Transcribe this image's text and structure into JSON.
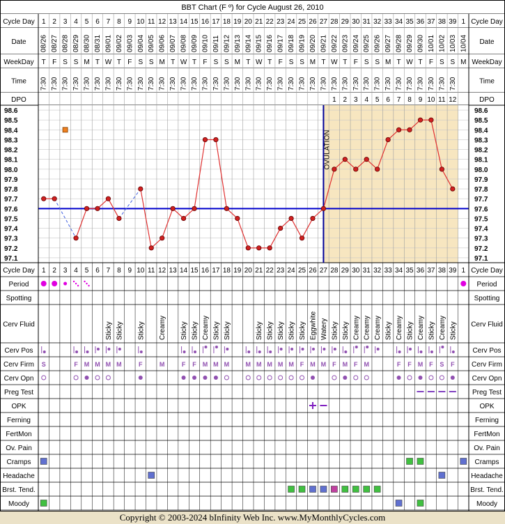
{
  "title": "BBT Chart (F º) for Cycle August 26, 2010",
  "footer": "Copyright © 2003-2024 bInfinity Web Inc.    www.MyMonthlyCycles.com",
  "colors": {
    "line": "#e03030",
    "point_fill": "#d02020",
    "coverline": "#0000cc",
    "ovulation_line": "#000099",
    "luteal_shade": "#f7e6c0",
    "header_bg": "#e8e8e8",
    "period_dot": "#e000e0",
    "fluid_text": "#000000",
    "cervix_mark": "#9050b0",
    "opk_mark": "#8020c0",
    "preg_test_mark": "#8040c0",
    "symptom_blue": "#6070d0",
    "symptom_green": "#40c040",
    "symptom_magenta": "#c040a0",
    "unconfirmed_box": "#f08020"
  },
  "chart_data": {
    "type": "line",
    "title": "BBT Chart (F º) for Cycle August 26, 2010",
    "ylabel": "",
    "ylim": [
      97.1,
      98.6
    ],
    "y_ticks": [
      "98.6",
      "98.5",
      "98.4",
      "98.3",
      "98.2",
      "98.1",
      "98.0",
      "97.9",
      "97.8",
      "97.7",
      "97.6",
      "97.5",
      "97.4",
      "97.3",
      "97.2",
      "97.1"
    ],
    "cycle_days": [
      "1",
      "2",
      "3",
      "4",
      "5",
      "6",
      "7",
      "8",
      "9",
      "10",
      "11",
      "12",
      "13",
      "14",
      "15",
      "16",
      "17",
      "18",
      "19",
      "20",
      "21",
      "22",
      "23",
      "24",
      "25",
      "26",
      "27",
      "28",
      "29",
      "30",
      "31",
      "32",
      "33",
      "34",
      "35",
      "36",
      "37",
      "38",
      "39",
      "1"
    ],
    "dates": [
      "08/26",
      "08/27",
      "08/28",
      "08/29",
      "08/30",
      "08/31",
      "09/01",
      "09/02",
      "09/03",
      "09/04",
      "09/05",
      "09/06",
      "09/07",
      "09/08",
      "09/09",
      "09/10",
      "09/11",
      "09/12",
      "09/13",
      "09/14",
      "09/15",
      "09/16",
      "09/17",
      "09/18",
      "09/19",
      "09/20",
      "09/21",
      "09/22",
      "09/23",
      "09/24",
      "09/25",
      "09/26",
      "09/27",
      "09/28",
      "09/29",
      "09/30",
      "10/01",
      "10/02",
      "10/03",
      "10/04"
    ],
    "weekdays": [
      "T",
      "F",
      "S",
      "S",
      "M",
      "T",
      "W",
      "T",
      "F",
      "S",
      "S",
      "M",
      "T",
      "W",
      "T",
      "F",
      "S",
      "S",
      "M",
      "T",
      "W",
      "T",
      "F",
      "S",
      "S",
      "M",
      "T",
      "W",
      "T",
      "F",
      "S",
      "S",
      "M",
      "T",
      "W",
      "T",
      "F",
      "S",
      "S",
      "M"
    ],
    "times": [
      "7:30",
      "7:30",
      "7:30",
      "7:30",
      "7:30",
      "7:30",
      "7:30",
      "7:30",
      "7:30",
      "7:30",
      "7:30",
      "7:30",
      "7:30",
      "7:30",
      "7:30",
      "7:30",
      "7:30",
      "7:30",
      "7:30",
      "7:30",
      "7:30",
      "7:30",
      "7:30",
      "7:30",
      "7:30",
      "7:30",
      "7:30",
      "7:30",
      "7:30",
      "7:30",
      "7:30",
      "7:30",
      "7:30",
      "7:30",
      "7:30",
      "7:30",
      "7:30",
      "7:30",
      "7:30",
      ""
    ],
    "dpo": [
      "",
      "",
      "",
      "",
      "",
      "",
      "",
      "",
      "",
      "",
      "",
      "",
      "",
      "",
      "",
      "",
      "",
      "",
      "",
      "",
      "",
      "",
      "",
      "",
      "",
      "",
      "",
      "1",
      "2",
      "3",
      "4",
      "5",
      "6",
      "7",
      "8",
      "9",
      "10",
      "11",
      "12",
      ""
    ],
    "temperatures": [
      97.7,
      97.7,
      null,
      97.3,
      97.6,
      97.6,
      97.7,
      97.5,
      null,
      97.8,
      97.2,
      97.3,
      97.6,
      97.5,
      97.6,
      98.3,
      98.3,
      97.6,
      97.5,
      97.2,
      97.2,
      97.2,
      97.4,
      97.5,
      97.3,
      97.5,
      97.6,
      98.0,
      98.1,
      98.0,
      98.1,
      98.0,
      98.3,
      98.4,
      98.4,
      98.5,
      98.5,
      98.0,
      97.8,
      null
    ],
    "unconfirmed_points": [
      {
        "day_index": 2,
        "value": 98.4
      }
    ],
    "dashed_gaps": [
      [
        1,
        3
      ],
      [
        7,
        9
      ]
    ],
    "coverline": 97.6,
    "ovulation_day_index": 26,
    "ovulation_label": "OVULATION",
    "grid": true
  },
  "rows": [
    {
      "label": "Cycle Day"
    },
    {
      "label": "Period"
    },
    {
      "label": "Spotting"
    },
    {
      "label": "Cerv Fluid"
    },
    {
      "label": "Cerv Pos"
    },
    {
      "label": "Cerv Firm"
    },
    {
      "label": "Cerv Opn"
    },
    {
      "label": "Preg Test"
    },
    {
      "label": "OPK"
    },
    {
      "label": "Ferning"
    },
    {
      "label": "FertMon"
    },
    {
      "label": "Ov. Pain"
    },
    {
      "label": "Cramps"
    },
    {
      "label": "Headache"
    },
    {
      "label": "Brst. Tend."
    },
    {
      "label": "Moody"
    }
  ],
  "header_rows": {
    "cycle_day": "Cycle Day",
    "date": "Date",
    "weekday": "WeekDay",
    "time": "Time",
    "dpo": "DPO"
  },
  "observations": {
    "period": [
      "big",
      "big",
      "med",
      "light",
      "light",
      "",
      "",
      "",
      "",
      "",
      "",
      "",
      "",
      "",
      "",
      "",
      "",
      "",
      "",
      "",
      "",
      "",
      "",
      "",
      "",
      "",
      "",
      "",
      "",
      "",
      "",
      "",
      "",
      "",
      "",
      "",
      "",
      "",
      "",
      "big"
    ],
    "cervical_fluid": [
      "",
      "",
      "",
      "",
      "",
      "",
      "Sticky",
      "Sticky",
      "",
      "Sticky",
      "",
      "Creamy",
      "",
      "Sticky",
      "Sticky",
      "Creamy",
      "Sticky",
      "Sticky",
      "",
      "",
      "Sticky",
      "Sticky",
      "Sticky",
      "Sticky",
      "Sticky",
      "Eggwhite",
      "Watery",
      "Sticky",
      "Sticky",
      "Creamy",
      "Creamy",
      "Creamy",
      "Sticky",
      "Creamy",
      "Sticky",
      "Creamy",
      "Sticky",
      "Creamy",
      "Sticky",
      ""
    ],
    "cervix_position": [
      "low",
      "",
      "",
      "low",
      "low",
      "mid",
      "mid",
      "mid",
      "",
      "low",
      "",
      "",
      "",
      "low",
      "low",
      "high",
      "high",
      "mid",
      "",
      "low",
      "low",
      "low",
      "mid",
      "mid",
      "mid",
      "mid",
      "mid",
      "mid",
      "low",
      "high",
      "high",
      "mid",
      "",
      "low",
      "mid",
      "low",
      "low",
      "high",
      "low",
      ""
    ],
    "cervix_firmness": [
      "S",
      "",
      "",
      "F",
      "M",
      "M",
      "M",
      "M",
      "",
      "F",
      "",
      "M",
      "",
      "F",
      "F",
      "M",
      "M",
      "M",
      "",
      "M",
      "M",
      "M",
      "M",
      "M",
      "F",
      "M",
      "M",
      "F",
      "M",
      "F",
      "M",
      "",
      "",
      "F",
      "F",
      "M",
      "F",
      "S",
      "F",
      ""
    ],
    "cervix_opening": [
      "open",
      "",
      "",
      "open",
      "closed",
      "open",
      "open",
      "",
      "",
      "closed",
      "",
      "",
      "",
      "closed",
      "closed",
      "closed",
      "closed",
      "open",
      "",
      "open",
      "open",
      "open",
      "open",
      "open",
      "open",
      "closed",
      "",
      "open",
      "closed",
      "open",
      "open",
      "",
      "",
      "closed",
      "open",
      "closed",
      "open",
      "open",
      "closed",
      ""
    ],
    "preg_test": [
      "",
      "",
      "",
      "",
      "",
      "",
      "",
      "",
      "",
      "",
      "",
      "",
      "",
      "",
      "",
      "",
      "",
      "",
      "",
      "",
      "",
      "",
      "",
      "",
      "",
      "",
      "",
      "",
      "",
      "",
      "",
      "",
      "",
      "",
      "",
      "neg",
      "neg",
      "neg",
      "neg",
      ""
    ],
    "opk": [
      "",
      "",
      "",
      "",
      "",
      "",
      "",
      "",
      "",
      "",
      "",
      "",
      "",
      "",
      "",
      "",
      "",
      "",
      "",
      "",
      "",
      "",
      "",
      "",
      "",
      "pos",
      "neg",
      "",
      "",
      "",
      "",
      "",
      "",
      "",
      "",
      "",
      "",
      "",
      "",
      ""
    ],
    "cramps": [
      "blue",
      "",
      "",
      "",
      "",
      "",
      "",
      "",
      "",
      "",
      "",
      "",
      "",
      "",
      "",
      "",
      "",
      "",
      "",
      "",
      "",
      "",
      "",
      "",
      "",
      "",
      "",
      "",
      "",
      "",
      "",
      "",
      "",
      "",
      "green",
      "green",
      "",
      "",
      "",
      "blue"
    ],
    "headache": [
      "",
      "",
      "",
      "",
      "",
      "",
      "",
      "",
      "",
      "",
      "blue",
      "",
      "",
      "",
      "",
      "",
      "",
      "",
      "",
      "",
      "",
      "",
      "",
      "",
      "",
      "",
      "",
      "",
      "",
      "",
      "",
      "",
      "",
      "",
      "",
      "",
      "",
      "blue",
      "",
      ""
    ],
    "breast_tenderness": [
      "",
      "",
      "",
      "",
      "",
      "",
      "",
      "",
      "",
      "",
      "",
      "",
      "",
      "",
      "",
      "",
      "",
      "",
      "",
      "",
      "",
      "",
      "",
      "green",
      "green",
      "blue",
      "blue",
      "magenta",
      "green",
      "green",
      "green",
      "green",
      "",
      "",
      "",
      "",
      "",
      "",
      "",
      ""
    ],
    "moody": [
      "green",
      "",
      "",
      "",
      "",
      "",
      "",
      "",
      "",
      "",
      "",
      "",
      "",
      "",
      "",
      "",
      "",
      "",
      "",
      "",
      "",
      "",
      "",
      "",
      "",
      "",
      "",
      "",
      "",
      "",
      "",
      "",
      "",
      "blue",
      "",
      "green",
      "",
      "",
      "",
      ""
    ]
  }
}
